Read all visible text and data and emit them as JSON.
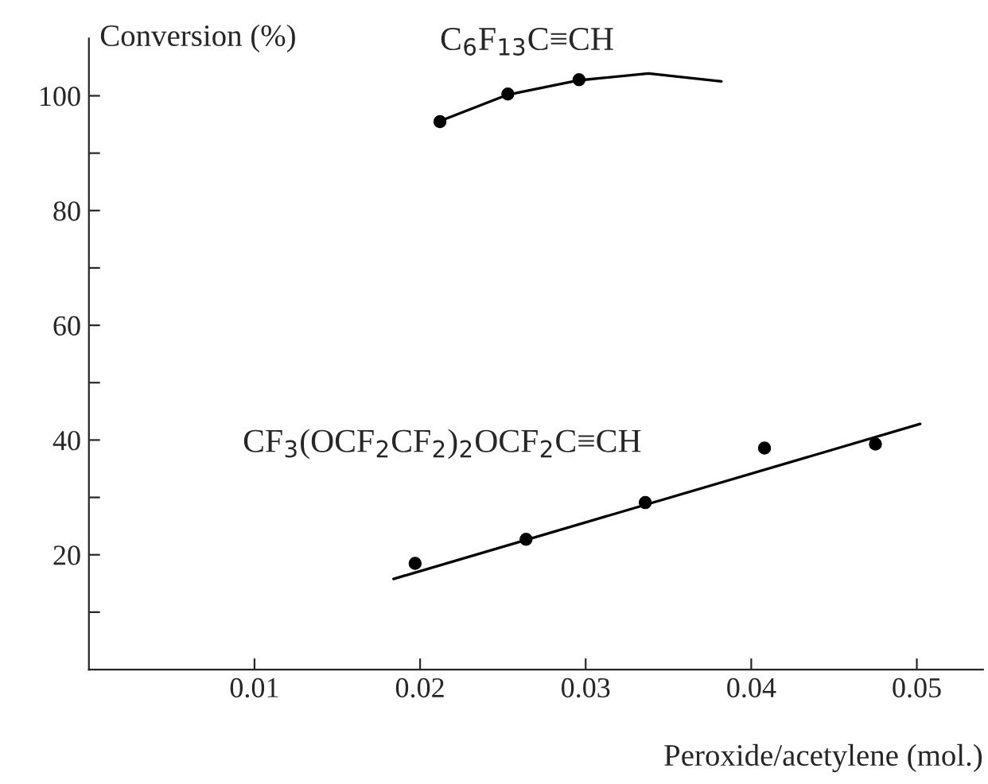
{
  "chart_data": {
    "type": "scatter",
    "xlabel": "Peroxide/acetylene (mol.)",
    "ylabel": "Conversion (%)",
    "xlim": [
      0,
      0.054
    ],
    "xticks": [
      0.01,
      0.02,
      0.03,
      0.04,
      0.05
    ],
    "ylim": [
      0,
      110
    ],
    "yticks": [
      {
        "value": 10,
        "label": null
      },
      20,
      {
        "value": 30,
        "label": null
      },
      40,
      {
        "value": 50,
        "label": null
      },
      60,
      {
        "value": 70,
        "label": null
      },
      80,
      {
        "value": 90,
        "label": null
      },
      100
    ],
    "grid": false,
    "legend": false,
    "marker": "circle",
    "series": [
      {
        "name": "C$_{6}$F$_{13}$C≡CH",
        "color": "#000000",
        "x": [
          0.0212,
          0.0253,
          0.0296
        ],
        "values": [
          95.5,
          100.3,
          102.8
        ]
      },
      {
        "type": "line",
        "color": "#000000",
        "marker": "none",
        "line_style": "solid",
        "x": [
          0.0212,
          0.0253,
          0.0296,
          0.0338,
          0.0382
        ],
        "values": [
          95.6,
          100.2,
          102.7,
          103.9,
          102.5
        ]
      },
      {
        "name": "CF$_{3}$(OCF$_{2}$CF$_{2}$)$_{2}$OCF$_{2}$C≡CH",
        "color": "#000000",
        "x": [
          0.0197,
          0.0264,
          0.0336,
          0.0408,
          0.0475
        ],
        "values": [
          18.5,
          22.7,
          29.1,
          38.6,
          39.3
        ]
      },
      {
        "type": "line",
        "color": "#000000",
        "marker": "none",
        "line_style": "solid",
        "x": [
          0.0184,
          0.0502
        ],
        "values": [
          15.8,
          42.8
        ]
      }
    ]
  }
}
